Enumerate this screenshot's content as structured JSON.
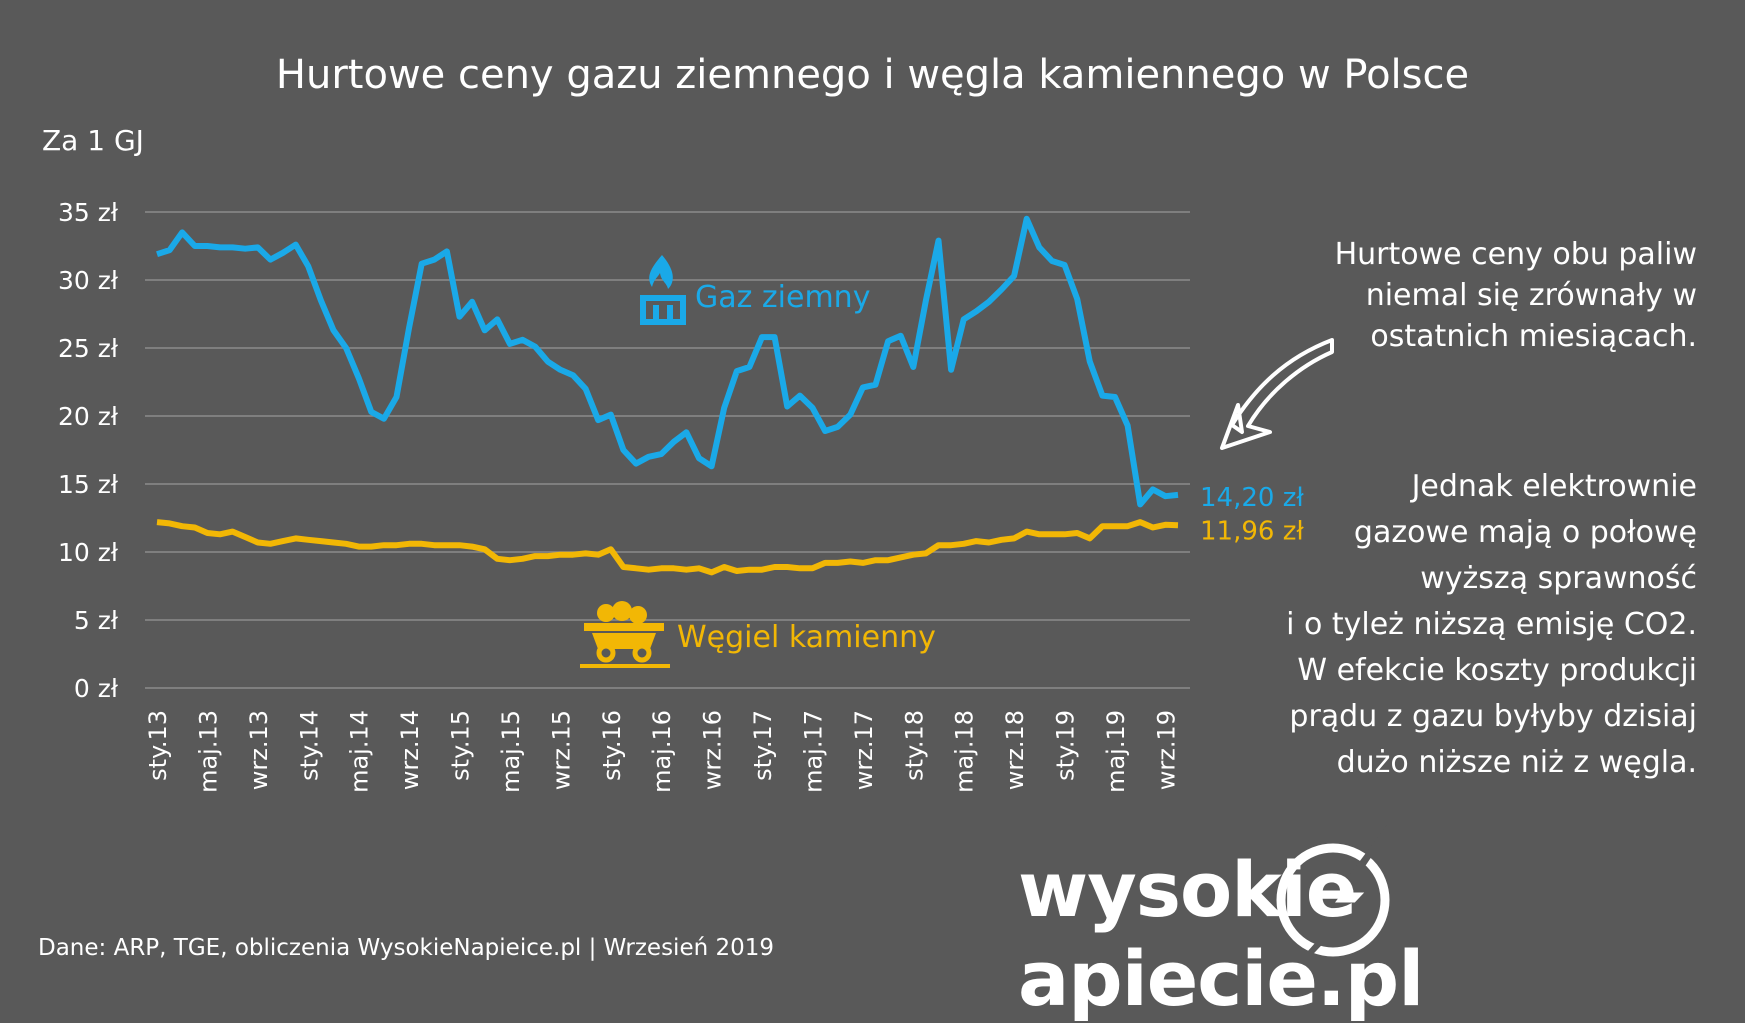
{
  "title": "Hurtowe ceny gazu ziemnego i węgla kamiennego w Polsce",
  "unit_label": "Za 1 GJ",
  "note_top": "Hurtowe ceny obu paliw\nniemal się zrównały w\nostatnich miesiącach.",
  "note_bottom": "Jednak elektrownie\ngazowe mają o połowę\nwyższą sprawność\ni o tyleż niższą emisję CO2.\nW efekcie koszty produkcji\nprądu z gazu byłyby dzisiaj\ndużo niższe niż z węgla.",
  "source": "Dane: ARP, TGE, obliczenia WysokieNapieice.pl   |   Wrzesień 2019",
  "logo": {
    "left": "wysokie",
    "right": "apiecie.pl"
  },
  "colors": {
    "background": "#595959",
    "gas": "#1aa9e8",
    "coal": "#f2b705",
    "grid": "#8c8c8c",
    "text": "#ffffff"
  },
  "icons": {
    "gas": "gas-flame-icon",
    "coal": "coal-cart-icon",
    "arrow": "curved-arrow-icon",
    "logo": "lightning-bolt-icon"
  },
  "chart_data": {
    "type": "line",
    "title": "Hurtowe ceny gazu ziemnego i węgla kamiennego w Polsce",
    "ylabel": "Za 1 GJ",
    "ylim": [
      0,
      35
    ],
    "yticks": [
      "0 zł",
      "5 zł",
      "10 zł",
      "15 zł",
      "20 zł",
      "25 zł",
      "30 zł",
      "35 zł"
    ],
    "x_tick_labels": [
      "sty.13",
      "maj.13",
      "wrz.13",
      "sty.14",
      "maj.14",
      "wrz.14",
      "sty.15",
      "maj.15",
      "wrz.15",
      "sty.16",
      "maj.16",
      "wrz.16",
      "sty.17",
      "maj.17",
      "wrz.17",
      "sty.18",
      "maj.18",
      "wrz.18",
      "sty.19",
      "maj.19",
      "wrz.19"
    ],
    "grid": true,
    "series": [
      {
        "name": "Gaz ziemny",
        "end_label": "14,20 zł",
        "values": [
          31.9,
          32.2,
          33.5,
          32.5,
          32.5,
          32.4,
          32.4,
          32.3,
          32.4,
          31.5,
          32.0,
          32.6,
          31.0,
          28.5,
          26.3,
          25.0,
          22.8,
          20.3,
          19.8,
          21.4,
          26.5,
          31.2,
          31.5,
          32.1,
          27.3,
          28.4,
          26.3,
          27.1,
          25.3,
          25.6,
          25.1,
          24.0,
          23.4,
          23.0,
          22.0,
          19.7,
          20.1,
          17.5,
          16.5,
          17.0,
          17.2,
          18.1,
          18.8,
          16.9,
          16.3,
          20.6,
          23.3,
          23.6,
          25.8,
          25.8,
          20.7,
          21.5,
          20.6,
          18.9,
          19.2,
          20.1,
          22.1,
          22.3,
          25.5,
          25.9,
          23.6,
          28.5,
          32.9,
          23.4,
          27.1,
          27.7,
          28.4,
          29.3,
          30.3,
          34.5,
          32.4,
          31.4,
          31.1,
          28.6,
          24.0,
          21.5,
          21.4,
          19.3,
          13.5,
          14.6,
          14.1,
          14.2
        ]
      },
      {
        "name": "Węgiel kamienny",
        "end_label": "11,96 zł",
        "values": [
          12.2,
          12.1,
          11.9,
          11.8,
          11.4,
          11.3,
          11.5,
          11.1,
          10.7,
          10.6,
          10.8,
          11.0,
          10.9,
          10.8,
          10.7,
          10.6,
          10.4,
          10.4,
          10.5,
          10.5,
          10.6,
          10.6,
          10.5,
          10.5,
          10.5,
          10.4,
          10.2,
          9.5,
          9.4,
          9.5,
          9.7,
          9.7,
          9.8,
          9.8,
          9.9,
          9.8,
          10.2,
          8.9,
          8.8,
          8.7,
          8.8,
          8.8,
          8.7,
          8.8,
          8.5,
          8.9,
          8.6,
          8.7,
          8.7,
          8.9,
          8.9,
          8.8,
          8.8,
          9.2,
          9.2,
          9.3,
          9.2,
          9.4,
          9.4,
          9.6,
          9.8,
          9.9,
          10.5,
          10.5,
          10.6,
          10.8,
          10.7,
          10.9,
          11.0,
          11.5,
          11.3,
          11.3,
          11.3,
          11.4,
          11.0,
          11.9,
          11.9,
          11.9,
          12.2,
          11.8,
          12.0,
          11.96
        ]
      }
    ]
  }
}
